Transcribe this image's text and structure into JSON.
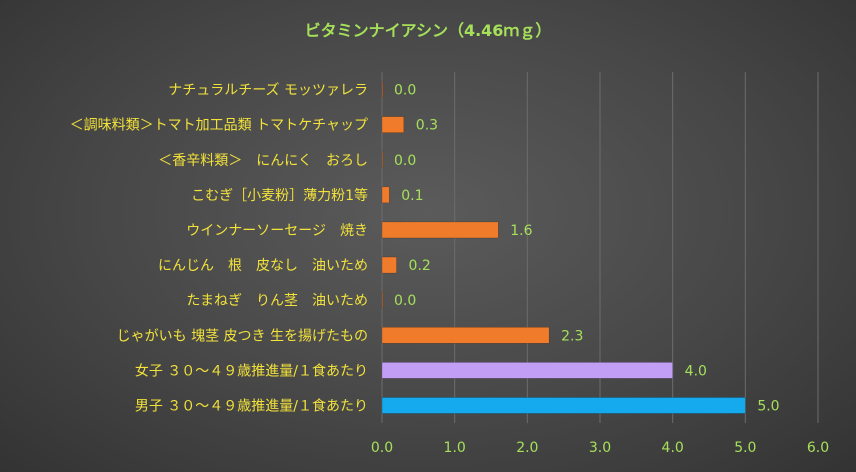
{
  "chart_data": {
    "type": "bar",
    "orientation": "horizontal",
    "title": "ビタミンナイアシン（4.46ｍｇ）",
    "xlim": [
      0,
      6
    ],
    "xticks": [
      "0.0",
      "1.0",
      "2.0",
      "3.0",
      "4.0",
      "5.0",
      "6.0"
    ],
    "grid": true,
    "categories": [
      "ナチュラルチーズ モッツァレラ",
      "＜調味料類＞トマト加工品類 トマトケチャップ",
      "＜香辛料類＞　にんにく　おろし",
      "こむぎ［小麦粉］薄力粉1等",
      "ウインナーソーセージ　焼き",
      "にんじん　根　皮なし　油いため",
      "たまねぎ　りん茎　油いため",
      "じゃがいも 塊茎 皮つき 生を揚げたもの",
      "女子 ３０～４９歳推進量/１食あたり",
      "男子 ３０～４９歳推進量/１食あたり"
    ],
    "values": [
      0.0,
      0.3,
      0.0,
      0.1,
      1.6,
      0.2,
      0.0,
      2.3,
      4.0,
      5.0
    ],
    "value_labels": [
      "0.0",
      "0.3",
      "0.0",
      "0.1",
      "1.6",
      "0.2",
      "0.0",
      "2.3",
      "4.0",
      "5.0"
    ],
    "colors": [
      "#f07c2b",
      "#f07c2b",
      "#f07c2b",
      "#f07c2b",
      "#f07c2b",
      "#f07c2b",
      "#f07c2b",
      "#f07c2b",
      "#c39ef5",
      "#15a9ee"
    ]
  }
}
